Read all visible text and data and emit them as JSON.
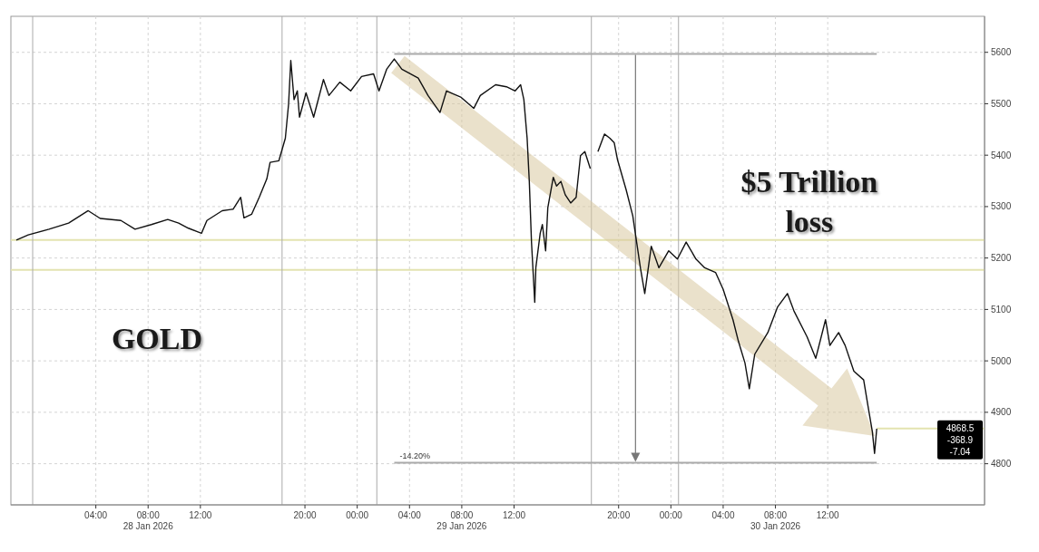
{
  "chart_data": {
    "type": "line",
    "annotations": [
      "GOLD",
      "$5 Trillion loss",
      "-14.20%",
      "-368.9",
      "-7.04"
    ],
    "x": [
      "2026-01-27T21:55",
      "2026-01-27T22:50",
      "2026-01-28T00:25",
      "2026-01-28T01:55",
      "2026-01-28T03:25",
      "2026-01-28T04:20",
      "2026-01-28T05:55",
      "2026-01-28T07:00",
      "2026-01-28T08:15",
      "2026-01-28T09:30",
      "2026-01-28T10:20",
      "2026-01-28T11:05",
      "2026-01-28T12:05",
      "2026-01-28T12:30",
      "2026-01-28T13:40",
      "2026-01-28T14:30",
      "2026-01-28T15:05",
      "2026-01-28T15:20",
      "2026-01-28T15:55",
      "2026-01-28T16:30",
      "2026-01-28T17:05",
      "2026-01-28T17:20",
      "2026-01-28T18:00",
      "2026-01-28T18:30",
      "2026-01-28T18:45",
      "2026-01-28T18:55",
      "2026-01-28T19:10",
      "2026-01-28T19:25",
      "2026-01-28T19:35",
      "2026-01-28T20:05",
      "2026-01-28T20:40",
      "2026-01-28T21:25",
      "2026-01-28T21:50",
      "2026-01-28T22:40",
      "2026-01-28T23:30",
      "2026-01-29T00:20",
      "2026-01-29T01:15",
      "2026-01-29T01:40",
      "2026-01-29T02:15",
      "2026-01-29T02:50",
      "2026-01-29T03:25",
      "2026-01-29T04:40",
      "2026-01-29T05:25",
      "2026-01-29T06:20",
      "2026-01-29T06:50",
      "2026-01-29T07:55",
      "2026-01-29T08:55",
      "2026-01-29T09:25",
      "2026-01-29T10:35",
      "2026-01-29T11:25",
      "2026-01-29T12:05",
      "2026-01-29T12:30",
      "2026-01-29T12:45",
      "2026-01-29T13:00",
      "2026-01-29T13:10",
      "2026-01-29T13:20",
      "2026-01-29T13:35",
      "2026-01-29T13:40",
      "2026-01-29T14:00",
      "2026-01-29T14:10",
      "2026-01-29T14:25",
      "2026-01-29T14:35",
      "2026-01-29T15:00",
      "2026-01-29T15:15",
      "2026-01-29T15:35",
      "2026-01-29T15:55",
      "2026-01-29T16:20",
      "2026-01-29T16:45",
      "2026-01-29T17:05",
      "2026-01-29T17:25",
      "2026-01-29T17:50",
      "2026-01-29T18:05",
      "2026-01-29T18:25",
      "2026-01-29T18:55",
      "2026-01-29T19:20",
      "2026-01-29T19:40",
      "2026-01-29T19:55",
      "2026-01-29T20:35",
      "2026-01-29T21:05",
      "2026-01-29T21:40",
      "2026-01-29T22:00",
      "2026-01-29T22:30",
      "2026-01-29T23:05",
      "2026-01-29T23:50",
      "2026-01-30T00:30",
      "2026-01-30T01:10",
      "2026-01-30T01:55",
      "2026-01-30T02:35",
      "2026-01-30T03:25",
      "2026-01-30T04:00",
      "2026-01-30T04:45",
      "2026-01-30T05:10",
      "2026-01-30T05:40",
      "2026-01-30T06:00",
      "2026-01-30T06:25",
      "2026-01-30T07:25",
      "2026-01-30T08:10",
      "2026-01-30T08:55",
      "2026-01-30T09:25",
      "2026-01-30T10:25",
      "2026-01-30T11:05",
      "2026-01-30T11:50",
      "2026-01-30T12:10",
      "2026-01-30T12:50",
      "2026-01-30T13:20",
      "2026-01-30T14:00",
      "2026-01-30T14:45",
      "2026-01-30T15:05",
      "2026-01-30T15:25",
      "2026-01-30T15:35",
      "2026-01-30T15:45"
    ],
    "series": [
      {
        "color": "#111111",
        "values": [
          5235,
          5245,
          5256,
          5268,
          5292,
          5277,
          5273,
          5256,
          5265,
          5275,
          5268,
          5258,
          5248,
          5273,
          5292,
          5295,
          5318,
          5278,
          5285,
          5318,
          5354,
          5386,
          5389,
          5433,
          5500,
          5584,
          5508,
          5525,
          5474,
          5521,
          5474,
          5547,
          5516,
          5542,
          5525,
          5553,
          5558,
          5525,
          5567,
          5587,
          5567,
          5550,
          5516,
          5483,
          5525,
          5513,
          5491,
          5516,
          5537,
          5533,
          5525,
          5537,
          5508,
          5433,
          5349,
          5231,
          5114,
          5181,
          5248,
          5265,
          5214,
          5298,
          5357,
          5340,
          5349,
          5323,
          5307,
          5318,
          5399,
          5407,
          5374,
          null,
          5407,
          5441,
          5433,
          5424,
          5391,
          5332,
          5282,
          5181,
          5131,
          5223,
          5181,
          5214,
          5198,
          5231,
          5198,
          5181,
          5172,
          5139,
          5080,
          5038,
          4996,
          4946,
          5013,
          5055,
          5105,
          5131,
          5097,
          5047,
          5005,
          5080,
          5030,
          5055,
          5030,
          4980,
          4963,
          4912,
          4862,
          4820,
          4868
        ]
      }
    ],
    "xlim": [
      "2026-01-27T21:30",
      "2026-01-31T00:00"
    ],
    "xticks": [
      {
        "value": "2026-01-28T04:00",
        "label": "04:00"
      },
      {
        "value": "2026-01-28T08:00",
        "label": "08:00\n28 Jan 2026"
      },
      {
        "value": "2026-01-28T12:00",
        "label": "12:00"
      },
      {
        "value": "2026-01-28T20:00",
        "label": "20:00"
      },
      {
        "value": "2026-01-29T00:00",
        "label": "00:00"
      },
      {
        "value": "2026-01-29T04:00",
        "label": "04:00"
      },
      {
        "value": "2026-01-29T08:00",
        "label": "08:00\n29 Jan 2026"
      },
      {
        "value": "2026-01-29T12:00",
        "label": "12:00"
      },
      {
        "value": "2026-01-29T20:00",
        "label": "20:00"
      },
      {
        "value": "2026-01-30T00:00",
        "label": "00:00"
      },
      {
        "value": "2026-01-30T04:00",
        "label": "04:00"
      },
      {
        "value": "2026-01-30T08:00",
        "label": "08:00\n30 Jan 2026"
      },
      {
        "value": "2026-01-30T12:00",
        "label": "12:00"
      }
    ],
    "ylim": [
      4720,
      5670
    ],
    "yticks": [
      4800,
      4900,
      5000,
      5100,
      5200,
      5300,
      5400,
      5500,
      5600
    ],
    "grid": true,
    "ref_lines": [
      {
        "axis": "y",
        "value": 5235,
        "color": "#e3e3b0"
      },
      {
        "axis": "y",
        "value": 5177,
        "color": "#e3e3b0"
      },
      {
        "axis": "y",
        "value": 5597,
        "color": "#aaaaaa"
      },
      {
        "axis": "y",
        "value": 4802,
        "color": "#aaaaaa"
      },
      {
        "axis": "y",
        "value": 4868.5,
        "label": "4868.5",
        "color": "#e3e3b0"
      },
      {
        "axis": "x",
        "value": "2026-01-27T23:10",
        "color": "#aaaaaa"
      },
      {
        "axis": "x",
        "value": "2026-01-28T18:15",
        "color": "#aaaaaa"
      },
      {
        "axis": "x",
        "value": "2026-01-29T01:30",
        "color": "#aaaaaa"
      },
      {
        "axis": "x",
        "value": "2026-01-29T17:55",
        "color": "#aaaaaa"
      },
      {
        "axis": "x",
        "value": "2026-01-30T00:35",
        "color": "#aaaaaa"
      }
    ]
  }
}
